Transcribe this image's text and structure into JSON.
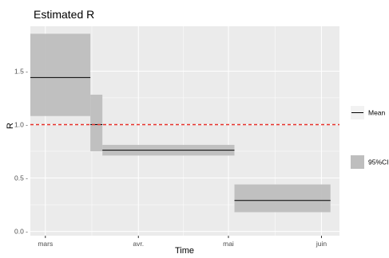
{
  "chart_data": {
    "type": "line",
    "title": "Estimated R",
    "xlabel": "Time",
    "ylabel": "R",
    "x_ticks": [
      "mars",
      "avr.",
      "mai",
      "juin"
    ],
    "x_tick_dates": [
      "2020-03-01",
      "2020-04-01",
      "2020-05-01",
      "2020-06-01"
    ],
    "xlim": [
      "2020-02-25",
      "2020-06-07"
    ],
    "y_ticks": [
      0.0,
      0.5,
      1.0,
      1.5
    ],
    "y_tick_labels": [
      "0.0 -",
      "0.5 -",
      "1.0 -",
      "1.5 -"
    ],
    "ylim": [
      -0.04,
      1.92
    ],
    "reference_line": {
      "y": 1.0,
      "color": "#e8322b",
      "style": "dashed"
    },
    "segments": [
      {
        "start": "2020-02-25",
        "end": "2020-03-16",
        "mean": 1.44,
        "lower": 1.08,
        "upper": 1.85
      },
      {
        "start": "2020-03-16",
        "end": "2020-03-20",
        "mean": 1.0,
        "lower": 0.75,
        "upper": 1.28
      },
      {
        "start": "2020-03-20",
        "end": "2020-05-03",
        "mean": 0.76,
        "lower": 0.71,
        "upper": 0.81
      },
      {
        "start": "2020-05-03",
        "end": "2020-06-04",
        "mean": 0.29,
        "lower": 0.18,
        "upper": 0.44
      }
    ],
    "legend": [
      {
        "label": "Mean",
        "kind": "line",
        "color": "#000000"
      },
      {
        "label": "95%CI",
        "kind": "fill",
        "color": "#bebebe"
      }
    ],
    "legend_placement": "right",
    "grid": true,
    "panel_background": "#ebebeb",
    "band_color": "#bebebe"
  }
}
